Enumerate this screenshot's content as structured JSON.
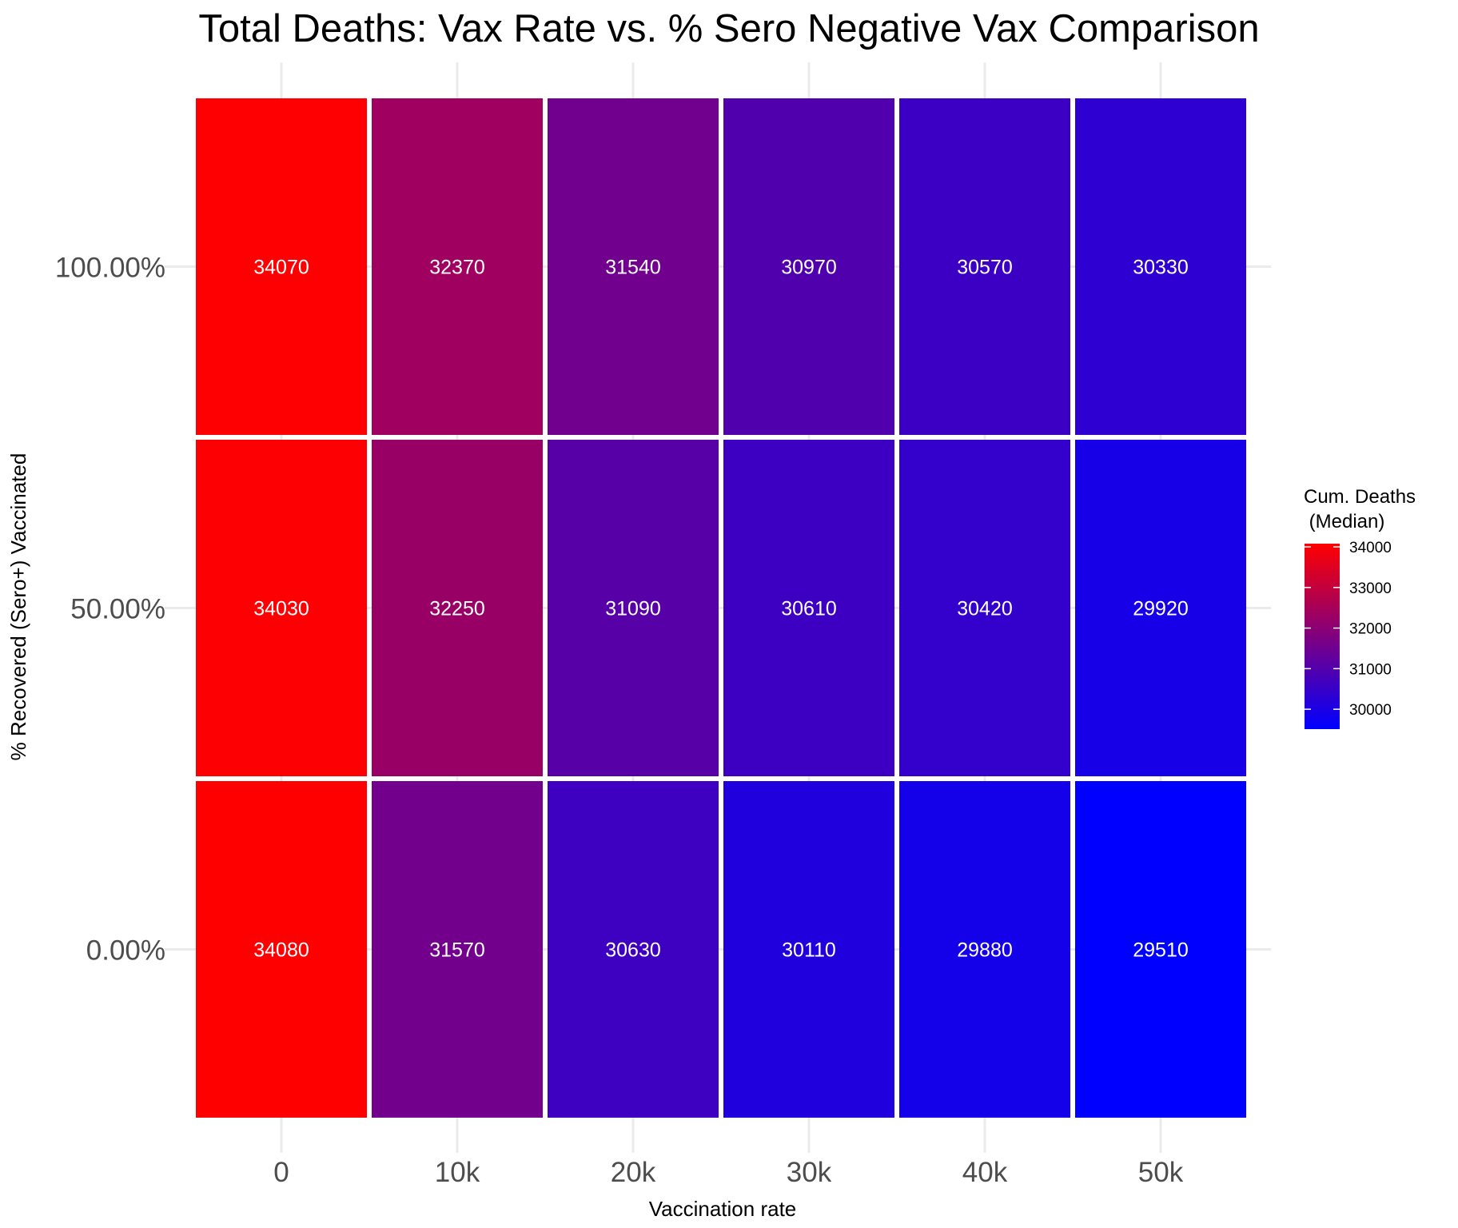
{
  "chart_data": {
    "type": "heatmap",
    "title": "Total Deaths: Vax Rate vs. % Sero Negative Vax Comparison",
    "xlabel": "Vaccination rate",
    "ylabel": "% Recovered (Sero+) Vaccinated",
    "x_categories": [
      "0",
      "10k",
      "20k",
      "30k",
      "40k",
      "50k"
    ],
    "y_categories": [
      "0.00%",
      "50.00%",
      "100.00%"
    ],
    "values": [
      [
        34080,
        31570,
        30630,
        30110,
        29880,
        29510
      ],
      [
        34030,
        32250,
        31090,
        30610,
        30420,
        29920
      ],
      [
        34070,
        32370,
        31540,
        30970,
        30570,
        30330
      ]
    ],
    "legend": {
      "title_line1": "Cum. Deaths",
      "title_line2": " (Median)",
      "ticks": [
        34000,
        33000,
        32000,
        31000,
        30000
      ],
      "range": [
        29510,
        34080
      ],
      "low_color": "#0000ff",
      "high_color": "#ff0000"
    },
    "grid": true
  }
}
